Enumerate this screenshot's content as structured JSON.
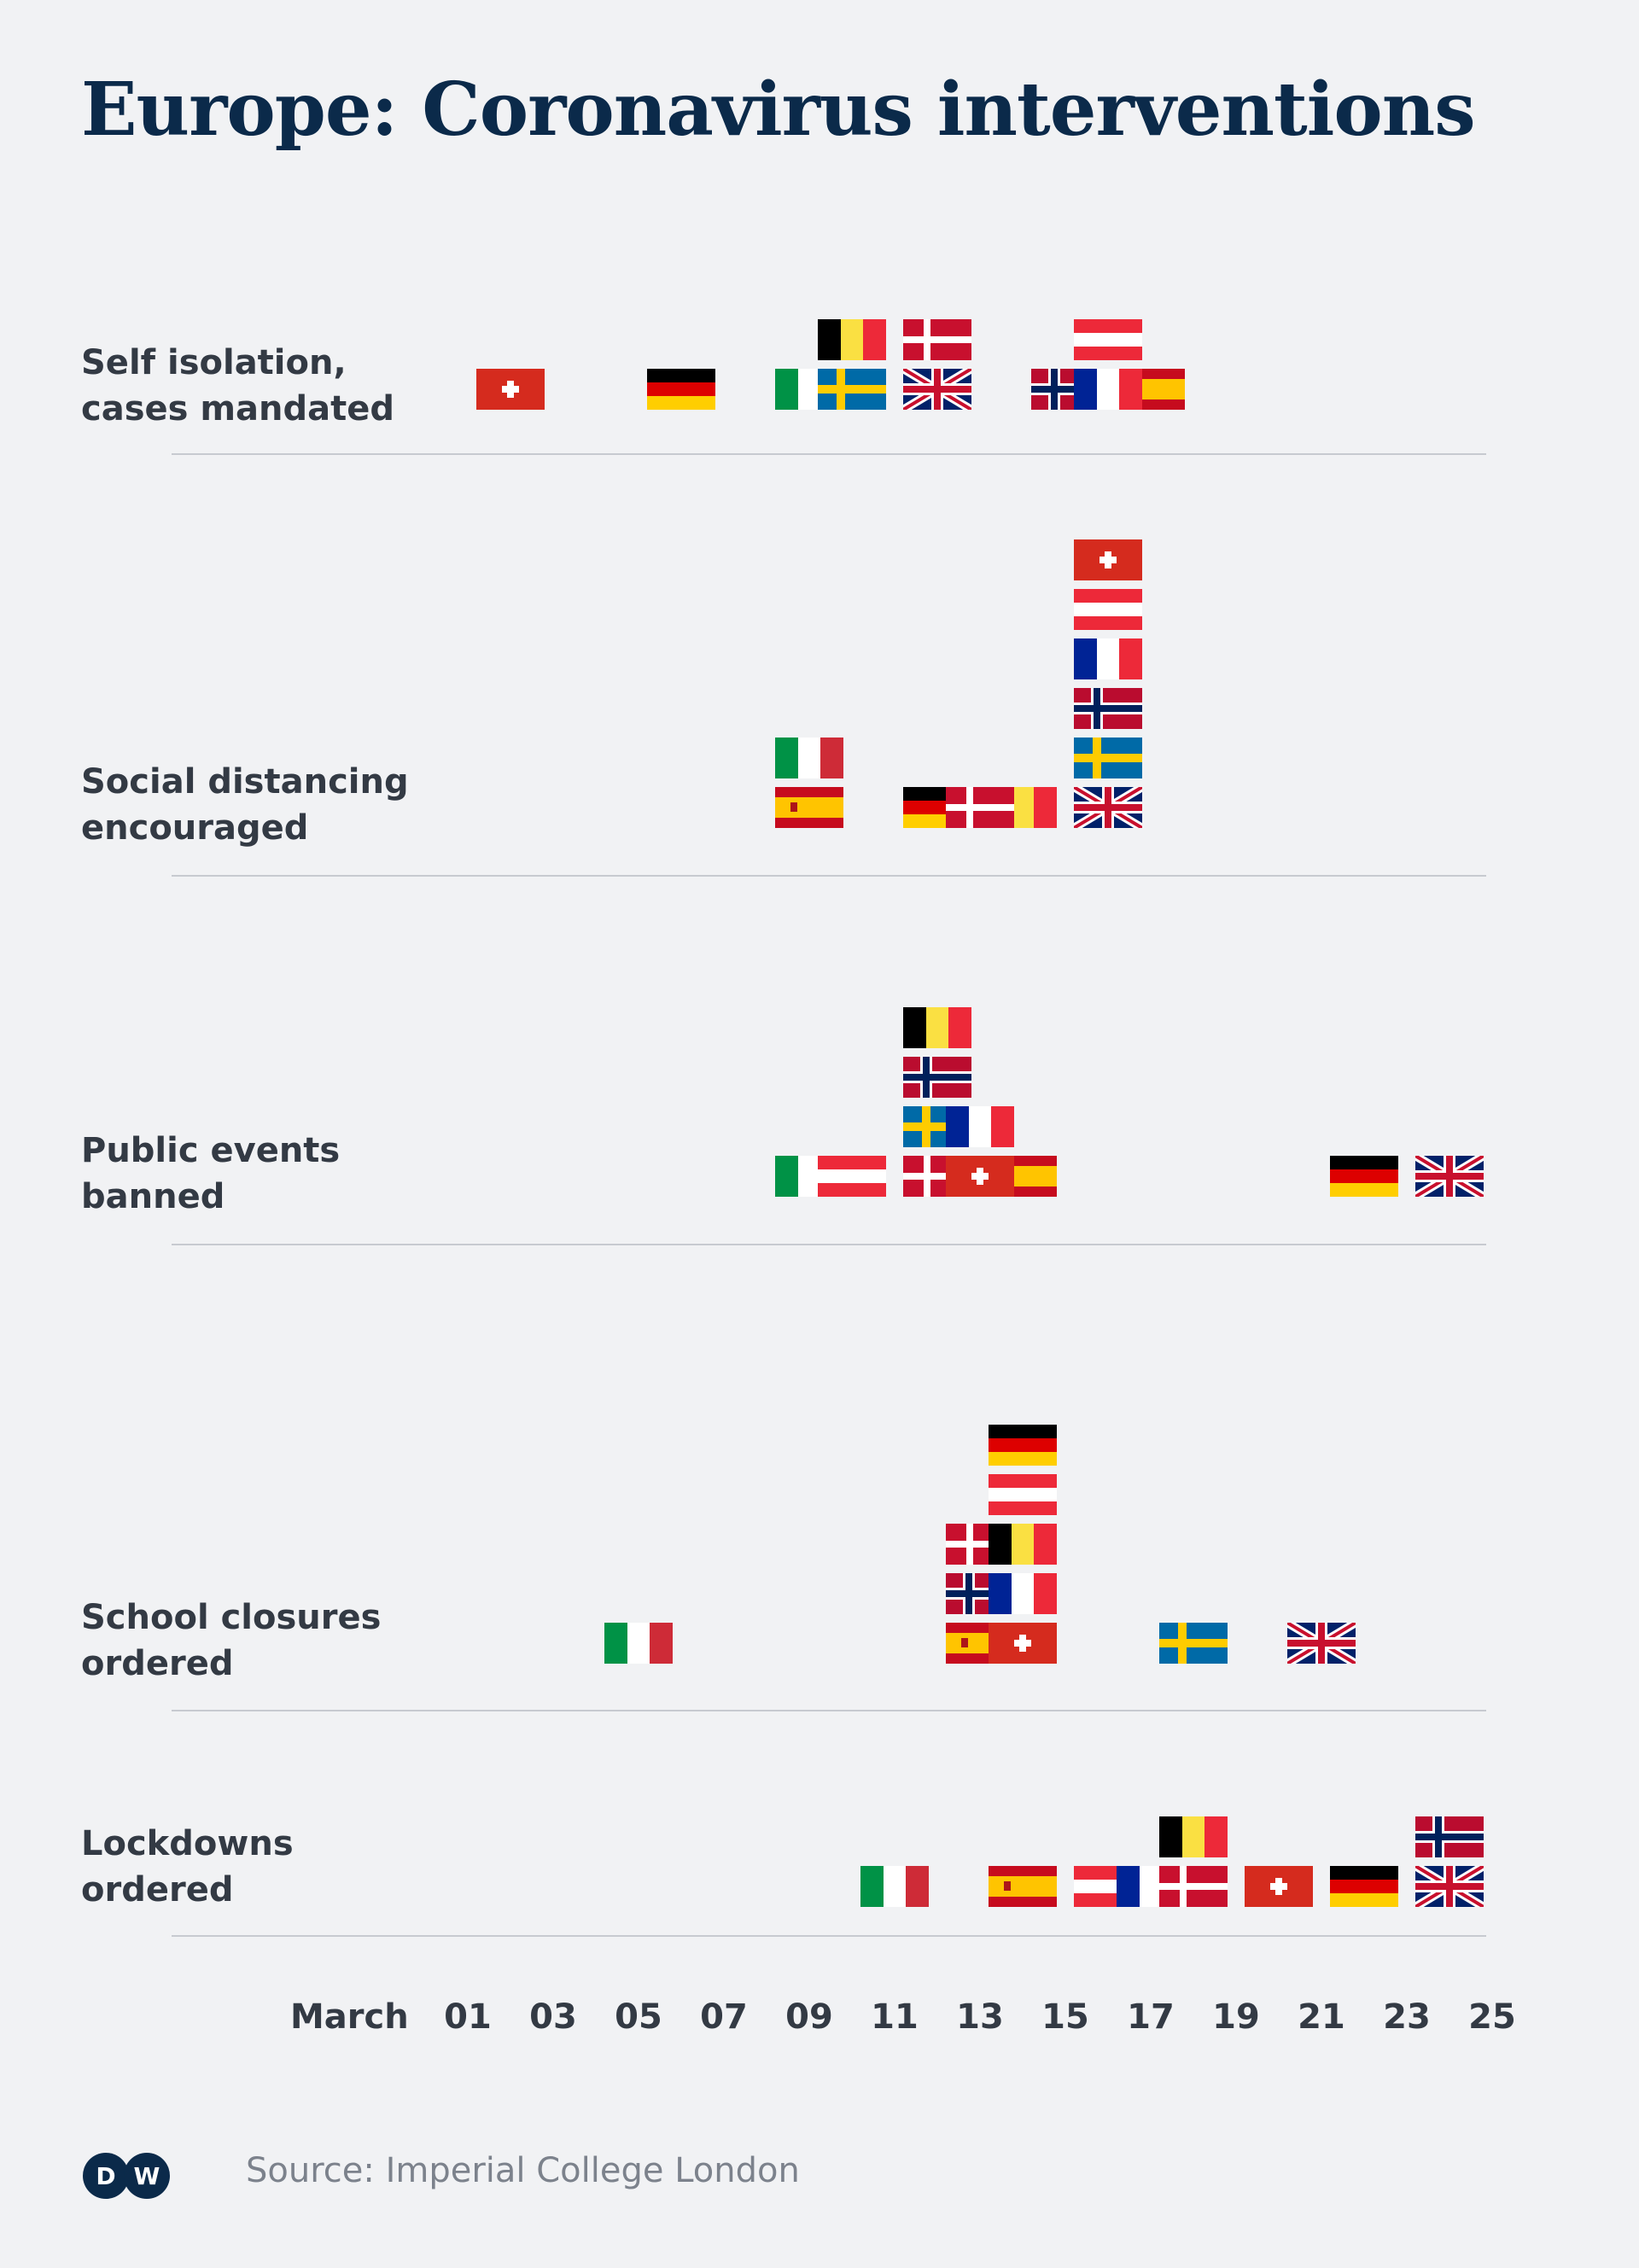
{
  "title": "Europe: Coronavirus interventions",
  "source": "Source: Imperial College London",
  "logo_text": "DW",
  "colors": {
    "background": "#f1f2f4",
    "title": "#0b2a4a",
    "text": "#333a44",
    "separator": "#c7cad0"
  },
  "chart_data": {
    "type": "scatter",
    "x_axis_title": "March",
    "x_ticks": [
      "01",
      "03",
      "05",
      "07",
      "09",
      "11",
      "13",
      "15",
      "17",
      "19",
      "21",
      "23",
      "25"
    ],
    "categories": [
      {
        "label": "Self isolation,\ncases mandated",
        "events": [
          {
            "country": "Switzerland",
            "date": "March 02"
          },
          {
            "country": "Germany",
            "date": "March 06"
          },
          {
            "country": "Italy",
            "date": "March 09"
          },
          {
            "country": "Sweden",
            "date": "March 10"
          },
          {
            "country": "Belgium",
            "date": "March 10"
          },
          {
            "country": "United Kingdom",
            "date": "March 12"
          },
          {
            "country": "Denmark",
            "date": "March 12"
          },
          {
            "country": "Norway",
            "date": "March 15"
          },
          {
            "country": "Spain",
            "date": "March 17"
          },
          {
            "country": "France",
            "date": "March 16"
          },
          {
            "country": "Austria",
            "date": "March 16"
          }
        ]
      },
      {
        "label": "Social distancing\nencouraged",
        "events": [
          {
            "country": "Spain",
            "date": "March 09"
          },
          {
            "country": "Italy",
            "date": "March 09"
          },
          {
            "country": "Germany",
            "date": "March 12"
          },
          {
            "country": "Belgium",
            "date": "March 14"
          },
          {
            "country": "Denmark",
            "date": "March 13"
          },
          {
            "country": "United Kingdom",
            "date": "March 16"
          },
          {
            "country": "Sweden",
            "date": "March 16"
          },
          {
            "country": "Norway",
            "date": "March 16"
          },
          {
            "country": "France",
            "date": "March 16"
          },
          {
            "country": "Austria",
            "date": "March 16"
          },
          {
            "country": "Switzerland",
            "date": "March 16"
          }
        ]
      },
      {
        "label": "Public events\nbanned",
        "events": [
          {
            "country": "Italy",
            "date": "March 09"
          },
          {
            "country": "Austria",
            "date": "March 10"
          },
          {
            "country": "Denmark",
            "date": "March 12"
          },
          {
            "country": "Sweden",
            "date": "March 12"
          },
          {
            "country": "Norway",
            "date": "March 12"
          },
          {
            "country": "Belgium",
            "date": "March 12"
          },
          {
            "country": "Spain",
            "date": "March 14"
          },
          {
            "country": "Switzerland",
            "date": "March 13"
          },
          {
            "country": "France",
            "date": "March 13"
          },
          {
            "country": "Germany",
            "date": "March 22"
          },
          {
            "country": "United Kingdom",
            "date": "March 24"
          }
        ]
      },
      {
        "label": "School closures\nordered",
        "events": [
          {
            "country": "Italy",
            "date": "March 05"
          },
          {
            "country": "Spain",
            "date": "March 13"
          },
          {
            "country": "Norway",
            "date": "March 13"
          },
          {
            "country": "Denmark",
            "date": "March 13"
          },
          {
            "country": "Switzerland",
            "date": "March 14"
          },
          {
            "country": "France",
            "date": "March 14"
          },
          {
            "country": "Belgium",
            "date": "March 14"
          },
          {
            "country": "Austria",
            "date": "March 14"
          },
          {
            "country": "Germany",
            "date": "March 14"
          },
          {
            "country": "Sweden",
            "date": "March 18"
          },
          {
            "country": "United Kingdom",
            "date": "March 21"
          }
        ]
      },
      {
        "label": "Lockdowns\nordered",
        "events": [
          {
            "country": "Italy",
            "date": "March 11"
          },
          {
            "country": "Spain",
            "date": "March 14"
          },
          {
            "country": "Austria",
            "date": "March 16"
          },
          {
            "country": "France",
            "date": "March 17"
          },
          {
            "country": "Denmark",
            "date": "March 18"
          },
          {
            "country": "Belgium",
            "date": "March 18"
          },
          {
            "country": "Switzerland",
            "date": "March 20"
          },
          {
            "country": "Germany",
            "date": "March 22"
          },
          {
            "country": "United Kingdom",
            "date": "March 24"
          },
          {
            "country": "Norway",
            "date": "March 24"
          }
        ]
      }
    ]
  }
}
